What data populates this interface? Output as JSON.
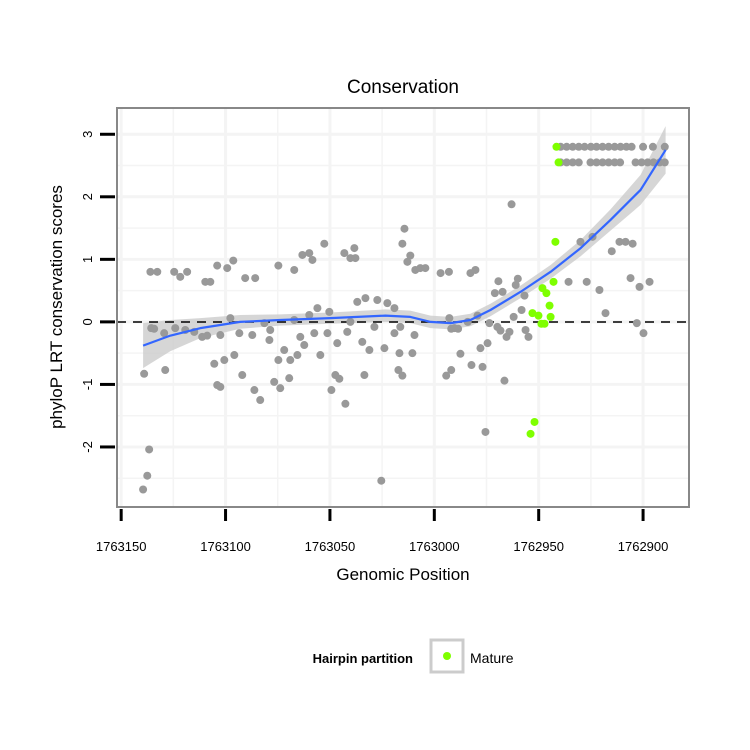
{
  "chart_data": {
    "type": "scatter",
    "title": "Conservation",
    "xlabel": "Genomic Position",
    "ylabel": "phyloP LRT conservation scores",
    "x_reversed": true,
    "xlim": [
      1763152,
      1762878
    ],
    "ylim": [
      -2.96,
      3.42
    ],
    "x_ticks": [
      1763150,
      1763100,
      1763050,
      1763000,
      1762950,
      1762900
    ],
    "x_tick_labels": [
      "1763150",
      "1763100",
      "1763050",
      "1763000",
      "1762950",
      "1762900"
    ],
    "y_ticks": [
      -2,
      -1,
      0,
      1,
      2,
      3
    ],
    "y_tick_labels": [
      "-2",
      "-1",
      "0",
      "1",
      "2",
      "3"
    ],
    "grid": true,
    "reference_line": {
      "y": 0,
      "style": "dashed"
    },
    "legend": {
      "title": "Hairpin partition",
      "placement": "bottom",
      "entries": [
        {
          "label": "Mature",
          "color": "#7fff00"
        }
      ]
    },
    "colors": {
      "other": "#999999",
      "mature": "#7fff00",
      "smooth": "#3366ff",
      "band": "#cccccc"
    },
    "series": [
      {
        "name": "Other",
        "color": "#999999",
        "points": [
          [
            1763139.5,
            -2.68
          ],
          [
            1763137.5,
            -2.46
          ],
          [
            1763136.6,
            -2.04
          ],
          [
            1763139,
            -0.83
          ],
          [
            1763128.9,
            -0.77
          ],
          [
            1763135.6,
            -0.1
          ],
          [
            1763134.2,
            -0.11
          ],
          [
            1763129.4,
            -0.18
          ],
          [
            1763124.1,
            -0.1
          ],
          [
            1763119.3,
            -0.13
          ],
          [
            1763115,
            -0.16
          ],
          [
            1763111.2,
            -0.24
          ],
          [
            1763108.8,
            -0.22
          ],
          [
            1763102.5,
            -0.21
          ],
          [
            1763097.7,
            0.06
          ],
          [
            1763093.4,
            -0.18
          ],
          [
            1763087.2,
            -0.21
          ],
          [
            1763081.4,
            -0.02
          ],
          [
            1763078.6,
            -0.13
          ],
          [
            1763079,
            -0.29
          ],
          [
            1763071.9,
            -0.45
          ],
          [
            1763074.7,
            -0.61
          ],
          [
            1763069,
            -0.61
          ],
          [
            1763065.6,
            -0.53
          ],
          [
            1763067.1,
            0.03
          ],
          [
            1763059.9,
            0.11
          ],
          [
            1763056,
            0.22
          ],
          [
            1763050.3,
            0.16
          ],
          [
            1763057.5,
            -0.18
          ],
          [
            1763051.2,
            -0.18
          ],
          [
            1763064.2,
            -0.24
          ],
          [
            1763062.3,
            -0.37
          ],
          [
            1763054.6,
            -0.53
          ],
          [
            1763046.5,
            -0.34
          ],
          [
            1763041.7,
            -0.16
          ],
          [
            1763040.2,
            0
          ],
          [
            1763036.9,
            0.32
          ],
          [
            1763033,
            0.38
          ],
          [
            1763027.3,
            0.35
          ],
          [
            1763022.5,
            0.3
          ],
          [
            1763019.1,
            0.22
          ],
          [
            1763028.7,
            -0.08
          ],
          [
            1763019.1,
            -0.18
          ],
          [
            1763016.3,
            -0.08
          ],
          [
            1763034.5,
            -0.32
          ],
          [
            1763031.1,
            -0.45
          ],
          [
            1763023.9,
            -0.42
          ],
          [
            1763016.7,
            -0.5
          ],
          [
            1763010.5,
            -0.5
          ],
          [
            1763009.5,
            -0.21
          ],
          [
            1763105.4,
            -0.67
          ],
          [
            1763100.6,
            -0.61
          ],
          [
            1763095.8,
            -0.53
          ],
          [
            1763092,
            -0.85
          ],
          [
            1763104,
            -1.01
          ],
          [
            1763102.5,
            -1.04
          ],
          [
            1763086.2,
            -1.09
          ],
          [
            1763083.4,
            -1.25
          ],
          [
            1763076.7,
            -0.96
          ],
          [
            1763073.8,
            -1.06
          ],
          [
            1763069.5,
            -0.9
          ],
          [
            1763047.4,
            -0.85
          ],
          [
            1763045.5,
            -0.91
          ],
          [
            1763049.3,
            -1.09
          ],
          [
            1763042.6,
            -1.31
          ],
          [
            1763033.5,
            -0.85
          ],
          [
            1763025.4,
            -2.54
          ],
          [
            1763017.2,
            -0.77
          ],
          [
            1763015.3,
            -0.86
          ],
          [
            1763136,
            0.8
          ],
          [
            1763132.7,
            0.8
          ],
          [
            1763124.6,
            0.8
          ],
          [
            1763121.7,
            0.72
          ],
          [
            1763118.4,
            0.8
          ],
          [
            1763109.7,
            0.64
          ],
          [
            1763107.3,
            0.64
          ],
          [
            1763104,
            0.9
          ],
          [
            1763099.2,
            0.86
          ],
          [
            1763096.3,
            0.98
          ],
          [
            1763090.6,
            0.7
          ],
          [
            1763085.8,
            0.7
          ],
          [
            1763074.7,
            0.9
          ],
          [
            1763067.1,
            0.83
          ],
          [
            1763063.2,
            1.07
          ],
          [
            1763059.9,
            1.1
          ],
          [
            1763058.4,
            0.99
          ],
          [
            1763052.7,
            1.25
          ],
          [
            1763043.1,
            1.1
          ],
          [
            1763038.3,
            1.18
          ],
          [
            1763040.2,
            1.02
          ],
          [
            1763037.8,
            1.02
          ],
          [
            1763014.3,
            1.49
          ],
          [
            1763015.3,
            1.25
          ],
          [
            1763011.5,
            1.06
          ],
          [
            1763012.9,
            0.96
          ],
          [
            1763009.1,
            0.83
          ],
          [
            1763006.7,
            0.86
          ],
          [
            1763004.3,
            0.86
          ],
          [
            1762997,
            0.78
          ],
          [
            1762993,
            0.8
          ],
          [
            1762982.7,
            0.78
          ],
          [
            1762980.3,
            0.83
          ],
          [
            1762963,
            1.88
          ],
          [
            1762969.3,
            0.65
          ],
          [
            1762960,
            0.69
          ],
          [
            1762971,
            0.46
          ],
          [
            1762967.3,
            0.48
          ],
          [
            1762961,
            0.59
          ],
          [
            1762956.8,
            0.42
          ],
          [
            1762958.2,
            0.19
          ],
          [
            1762962,
            0.08
          ],
          [
            1762973.6,
            -0.02
          ],
          [
            1762969.8,
            -0.08
          ],
          [
            1762968.3,
            -0.14
          ],
          [
            1762964,
            -0.16
          ],
          [
            1762965.4,
            -0.24
          ],
          [
            1762956.3,
            -0.13
          ],
          [
            1762954.9,
            -0.24
          ],
          [
            1762974.5,
            -0.34
          ],
          [
            1762977.9,
            -0.42
          ],
          [
            1762987.5,
            -0.51
          ],
          [
            1762982.2,
            -0.69
          ],
          [
            1762976.9,
            -0.72
          ],
          [
            1762966.4,
            -0.94
          ],
          [
            1762991.9,
            -0.77
          ],
          [
            1762994.3,
            -0.86
          ],
          [
            1762975.5,
            -1.76
          ],
          [
            1762991.9,
            -0.11
          ],
          [
            1762988.6,
            -0.11
          ],
          [
            1762992.8,
            0.06
          ],
          [
            1762990.4,
            -0.1
          ],
          [
            1762984,
            0
          ],
          [
            1762979.3,
            0.1
          ],
          [
            1762935.7,
            0.64
          ],
          [
            1762927,
            0.64
          ],
          [
            1762930,
            1.28
          ],
          [
            1762924.2,
            1.36
          ],
          [
            1762915,
            1.13
          ],
          [
            1762911.3,
            1.28
          ],
          [
            1762908.4,
            1.28
          ],
          [
            1762905,
            1.25
          ],
          [
            1762906,
            0.7
          ],
          [
            1762901.7,
            0.56
          ],
          [
            1762896.9,
            0.64
          ],
          [
            1762920.9,
            0.51
          ],
          [
            1762918,
            0.14
          ],
          [
            1762903,
            -0.02
          ],
          [
            1762899.8,
            -0.18
          ],
          [
            1762939.5,
            2.8
          ],
          [
            1762936.6,
            2.8
          ],
          [
            1762933.7,
            2.8
          ],
          [
            1762930.8,
            2.8
          ],
          [
            1762928,
            2.8
          ],
          [
            1762925,
            2.8
          ],
          [
            1762922.3,
            2.8
          ],
          [
            1762919.4,
            2.8
          ],
          [
            1762916.5,
            2.8
          ],
          [
            1762913.6,
            2.8
          ],
          [
            1762910.8,
            2.8
          ],
          [
            1762908,
            2.8
          ],
          [
            1762905.5,
            2.8
          ],
          [
            1762900,
            2.8
          ],
          [
            1762895.3,
            2.8
          ],
          [
            1762889.6,
            2.8
          ],
          [
            1762939.5,
            2.55
          ],
          [
            1762936.6,
            2.55
          ],
          [
            1762933.7,
            2.55
          ],
          [
            1762930.8,
            2.55
          ],
          [
            1762925.2,
            2.55
          ],
          [
            1762922.3,
            2.55
          ],
          [
            1762919.4,
            2.55
          ],
          [
            1762916.5,
            2.55
          ],
          [
            1762913.6,
            2.55
          ],
          [
            1762911,
            2.55
          ],
          [
            1762903.6,
            2.55
          ],
          [
            1762900.7,
            2.55
          ],
          [
            1762897.8,
            2.55
          ],
          [
            1762895,
            2.55
          ],
          [
            1762892,
            2.55
          ],
          [
            1762889.6,
            2.55
          ]
        ]
      },
      {
        "name": "Mature",
        "color": "#7fff00",
        "points": [
          [
            1762942,
            1.28
          ],
          [
            1762942.9,
            0.64
          ],
          [
            1762948.2,
            0.54
          ],
          [
            1762946.3,
            0.46
          ],
          [
            1762944.8,
            0.26
          ],
          [
            1762953,
            0.14
          ],
          [
            1762950.1,
            0.1
          ],
          [
            1762944.3,
            0.08
          ],
          [
            1762948.7,
            -0.03
          ],
          [
            1762947.2,
            -0.03
          ],
          [
            1762952,
            -1.6
          ],
          [
            1762953.9,
            -1.79
          ],
          [
            1762941.5,
            2.8
          ],
          [
            1762940.5,
            2.55
          ]
        ]
      }
    ],
    "smooth": {
      "x": [
        1763139.5,
        1763126.5,
        1763112.1,
        1763093,
        1763073.8,
        1763049.8,
        1763023.4,
        1763011.5,
        1763001.8,
        1762992.2,
        1762982.7,
        1762973.1,
        1762958.7,
        1762944.3,
        1762929.9,
        1762915.6,
        1762901.2,
        1762889.2
      ],
      "y": [
        -0.38,
        -0.22,
        -0.1,
        0,
        0.03,
        0.06,
        0.1,
        0.08,
        0,
        -0.02,
        0.03,
        0.19,
        0.48,
        0.8,
        1.18,
        1.63,
        2.11,
        2.75
      ],
      "se": [
        0.36,
        0.25,
        0.16,
        0.11,
        0.09,
        0.09,
        0.1,
        0.1,
        0.1,
        0.1,
        0.1,
        0.1,
        0.1,
        0.11,
        0.13,
        0.17,
        0.24,
        0.38
      ]
    }
  }
}
